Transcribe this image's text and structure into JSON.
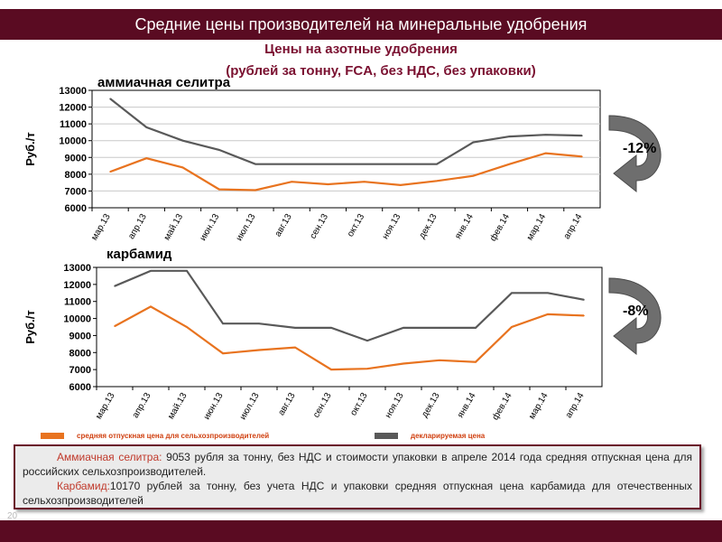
{
  "header": {
    "title": "Средние цены производителей на минеральные удобрения",
    "subtitle_line1": "Цены на азотные удобрения",
    "subtitle_line2": "(рублей за тонну, FCA, без НДС, без упаковки)"
  },
  "colors": {
    "brand": "#5a0b22",
    "selling_price": "#e8731f",
    "declared_price": "#595959",
    "subtitle": "#7a1030"
  },
  "legend": {
    "selling_price": "средняя отпускная цена для сельхозпроизводителей",
    "declared_price": "декларируемая цена"
  },
  "chart_data": [
    {
      "type": "line",
      "title": "аммиачная селитра",
      "ylabel": "Руб./т",
      "ylim": [
        6000,
        13000
      ],
      "yticks": [
        6000,
        7000,
        8000,
        9000,
        10000,
        11000,
        12000,
        13000
      ],
      "grid": true,
      "categories": [
        "мар.13",
        "апр.13",
        "май.13",
        "июн.13",
        "июл.13",
        "авг.13",
        "сен.13",
        "окт.13",
        "ноя.13",
        "дек.13",
        "янв.14",
        "фев.14",
        "мар.14",
        "апр.14"
      ],
      "series": [
        {
          "key": "declared_price",
          "values": [
            12500,
            10800,
            10000,
            9450,
            8600,
            8600,
            8600,
            8600,
            8600,
            8600,
            9900,
            10250,
            10350,
            10300
          ]
        },
        {
          "key": "selling_price",
          "values": [
            8150,
            8950,
            8400,
            7100,
            7050,
            7550,
            7400,
            7550,
            7350,
            7600,
            7900,
            8600,
            9250,
            9053
          ]
        }
      ],
      "change_label": "-12%"
    },
    {
      "type": "line",
      "title": "карбамид",
      "ylabel": "Руб./т",
      "ylim": [
        6000,
        13000
      ],
      "yticks": [
        6000,
        7000,
        8000,
        9000,
        10000,
        11000,
        12000,
        13000
      ],
      "grid": false,
      "categories": [
        "мар.13",
        "апр.13",
        "май.13",
        "июн.13",
        "июл.13",
        "авг.13",
        "сен.13",
        "окт.13",
        "ноя.13",
        "дек.13",
        "янв.14",
        "фев.14",
        "мар.14",
        "апр.14"
      ],
      "series": [
        {
          "key": "declared_price",
          "values": [
            11900,
            12800,
            12800,
            9700,
            9700,
            9450,
            9450,
            8700,
            9450,
            9450,
            9450,
            11500,
            11500,
            11100
          ]
        },
        {
          "key": "selling_price",
          "values": [
            9550,
            10700,
            9500,
            7950,
            8150,
            8300,
            7000,
            7050,
            7350,
            7550,
            7450,
            9500,
            10250,
            10170
          ]
        }
      ],
      "change_label": "-8%"
    }
  ],
  "notes": {
    "p1_label": "Аммиачная селитра:",
    "p1_text": " 9053 рубля за тонну, без НДС и стоимости упаковки в апреле 2014 года средняя отпускная цена для российских сельхозпроизводителей.",
    "p2_label": "Карбамид:",
    "p2_text": "10170 рублей за тонну, без учета НДС и упаковки средняя отпускная цена карбамида для отечественных сельхозпроизводителей"
  },
  "page_number": "20"
}
